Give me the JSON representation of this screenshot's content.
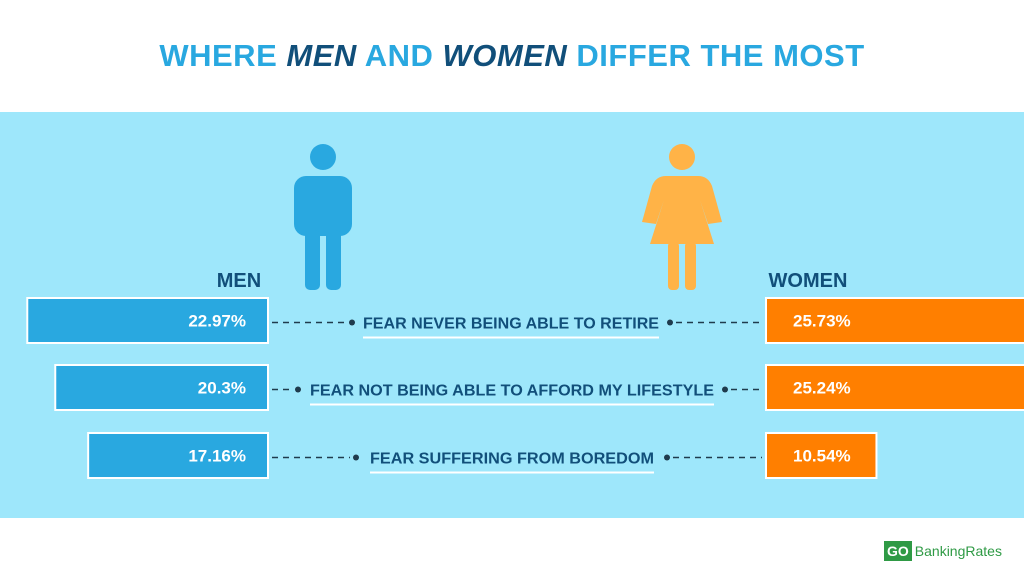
{
  "header": {
    "title_part1": "WHERE",
    "title_men": "MEN",
    "title_and": "AND",
    "title_women": "WOMEN",
    "title_part2": "DIFFER THE MOST"
  },
  "colors": {
    "men": "#29a8e0",
    "women": "#ff7f00",
    "panel_bg": "#9ee7fb",
    "label_dark": "#114f7a",
    "bar_border": "#ffffff"
  },
  "chart_data": {
    "type": "bar",
    "orientation": "horizontal-butterfly",
    "categories": [
      "FEAR NEVER BEING ABLE TO RETIRE",
      "FEAR NOT BEING ABLE TO AFFORD MY LIFESTYLE",
      "FEAR SUFFERING FROM BOREDOM"
    ],
    "series": [
      {
        "name": "MEN",
        "values": [
          22.97,
          20.3,
          17.16
        ],
        "labels": [
          "22.97%",
          "20.3%",
          "17.16%"
        ]
      },
      {
        "name": "WOMEN",
        "values": [
          25.73,
          25.24,
          10.54
        ],
        "labels": [
          "25.73%",
          "25.24%",
          "10.54%"
        ]
      }
    ],
    "title": "WHERE MEN AND WOMEN DIFFER THE MOST",
    "icons": [
      "male-person-icon",
      "female-person-icon"
    ]
  },
  "logo": {
    "go": "GO",
    "rest": "BankingRates"
  }
}
